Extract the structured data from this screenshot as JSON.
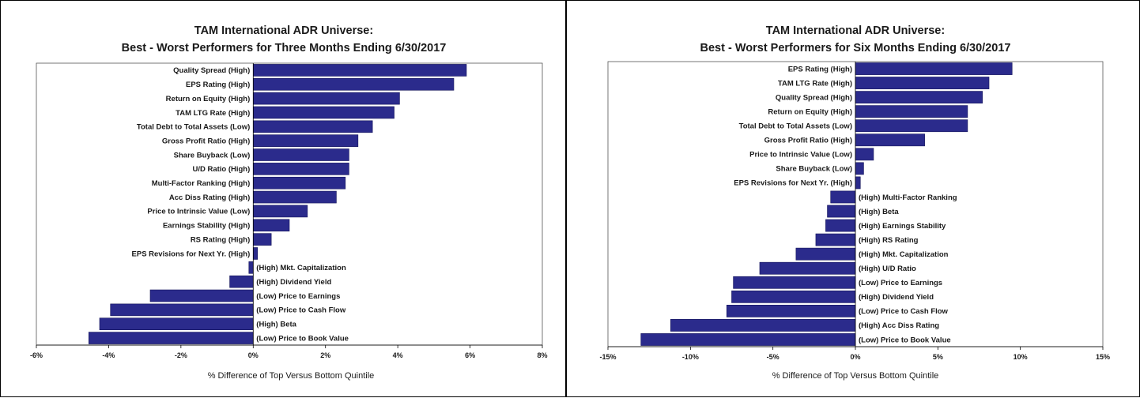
{
  "chart_data": [
    {
      "type": "bar",
      "orientation": "horizontal",
      "title": "TAM International ADR Universe:",
      "subtitle": "Best - Worst Performers for Three Months Ending 6/30/2017",
      "xlabel": "% Difference of Top Versus Bottom Quintile",
      "xlim": [
        -6,
        8
      ],
      "xticks": [
        -6,
        -4,
        -2,
        0,
        2,
        4,
        6,
        8
      ],
      "tick_suffix": "%",
      "bar_color": "#2b2b8c",
      "categories": [
        "Quality Spread (High)",
        "EPS Rating (High)",
        "Return on Equity (High)",
        "TAM LTG Rate (High)",
        "Total Debt to Total Assets (Low)",
        "Gross Profit Ratio (High)",
        "Share Buyback (Low)",
        "U/D Ratio (High)",
        "Multi-Factor Ranking (High)",
        "Acc Diss Rating (High)",
        "Price to Intrinsic Value (Low)",
        "Earnings Stability (High)",
        "RS Rating (High)",
        "EPS Revisions for Next Yr. (High)",
        "(High) Mkt. Capitalization",
        "(High) Dividend Yield",
        "(Low) Price to Earnings",
        "(Low) Price to Cash Flow",
        "(High) Beta",
        "(Low) Price to Book Value"
      ],
      "values": [
        5.9,
        5.55,
        4.05,
        3.9,
        3.3,
        2.9,
        2.65,
        2.65,
        2.55,
        2.3,
        1.5,
        1.0,
        0.5,
        0.12,
        -0.12,
        -0.65,
        -2.85,
        -3.95,
        -4.25,
        -4.55
      ]
    },
    {
      "type": "bar",
      "orientation": "horizontal",
      "title": "TAM International ADR Universe:",
      "subtitle": "Best - Worst Performers for Six Months Ending 6/30/2017",
      "xlabel": "% Difference of Top Versus Bottom Quintile",
      "xlim": [
        -15,
        15
      ],
      "xticks": [
        -15,
        -10,
        -5,
        0,
        5,
        10,
        15
      ],
      "tick_suffix": "%",
      "bar_color": "#2b2b8c",
      "categories": [
        "EPS Rating (High)",
        "TAM LTG Rate (High)",
        "Quality Spread (High)",
        "Return on Equity (High)",
        "Total Debt to Total Assets (Low)",
        "Gross Profit Ratio (High)",
        "Price to Intrinsic Value (Low)",
        "Share Buyback (Low)",
        "EPS Revisions for Next Yr. (High)",
        "(High) Multi-Factor Ranking",
        "(High) Beta",
        "(High) Earnings Stability",
        "(High) RS Rating",
        "(High) Mkt. Capitalization",
        "(High) U/D Ratio",
        "(Low) Price to Earnings",
        "(High) Dividend Yield",
        "(Low) Price to Cash Flow",
        "(High) Acc Diss Rating",
        "(Low) Price to Book Value"
      ],
      "values": [
        9.5,
        8.1,
        7.7,
        6.8,
        6.8,
        4.2,
        1.1,
        0.5,
        0.3,
        -1.5,
        -1.7,
        -1.8,
        -2.4,
        -3.6,
        -5.8,
        -7.4,
        -7.5,
        -7.8,
        -11.2,
        -13.0
      ]
    }
  ]
}
